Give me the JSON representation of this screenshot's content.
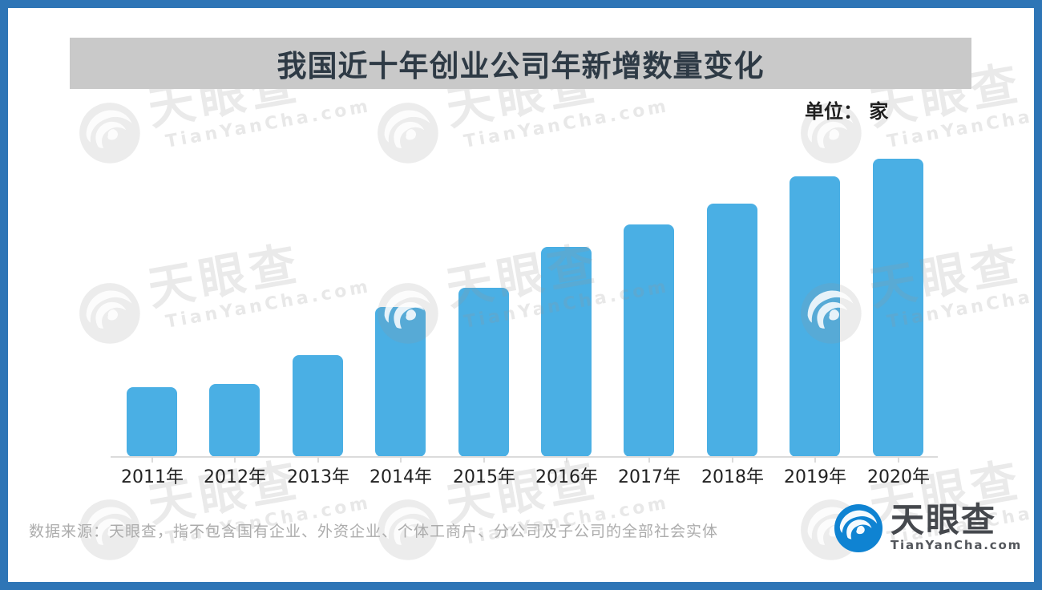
{
  "frame": {
    "border_color": "#2E75B6"
  },
  "header": {
    "title": "我国近十年创业公司年新增数量变化",
    "banner_bg": "#C9C9C9"
  },
  "unit_label": "单位： 家",
  "chart_data": {
    "type": "bar",
    "title": "我国近十年创业公司年新增数量变化",
    "unit": "单位：家",
    "categories": [
      "2011年",
      "2012年",
      "2013年",
      "2014年",
      "2015年",
      "2016年",
      "2017年",
      "2018年",
      "2019年",
      "2020年"
    ],
    "values": [
      23.4,
      24.5,
      34.1,
      50.3,
      56.7,
      70.4,
      78.0,
      85.0,
      94.1,
      100.0
    ],
    "values_note": "No numeric axis or data labels are shown in the image; values are bar heights expressed as percent of the tallest (2020) bar, estimated from pixels.",
    "xlabel": "",
    "ylabel": "",
    "y_axis_visible": false,
    "grid": false,
    "legend": false,
    "bar_color": "#4AAFE4",
    "axis_color": "#DBDBDB"
  },
  "footer": {
    "source_text": "数据来源：天眼查，指不包含国有企业、外资企业、个体工商户、分公司及子公司的全部社会实体"
  },
  "brand": {
    "name": "天眼查",
    "domain": "TianYanCha.com",
    "logo_blue": "#0F83D2"
  },
  "watermark": {
    "text": "天眼查",
    "subtext": "TianYanCha.com"
  }
}
